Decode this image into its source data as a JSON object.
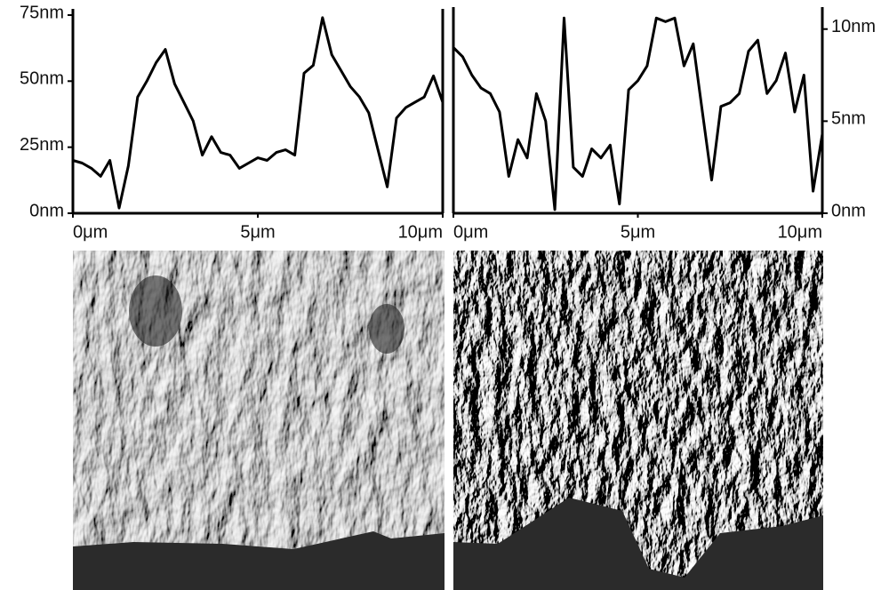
{
  "chart_data": [
    {
      "type": "line",
      "color": "#000000",
      "x": [
        0,
        0.25,
        0.5,
        0.75,
        1,
        1.25,
        1.5,
        1.75,
        2,
        2.25,
        2.5,
        2.75,
        3,
        3.25,
        3.5,
        3.75,
        4,
        4.25,
        4.5,
        4.75,
        5,
        5.25,
        5.5,
        5.75,
        6,
        6.25,
        6.5,
        6.75,
        7,
        7.25,
        7.5,
        7.75,
        8,
        8.25,
        8.5,
        8.75,
        9,
        9.25,
        9.5,
        9.75,
        10
      ],
      "values": [
        20,
        19,
        17,
        14,
        20,
        2,
        18,
        44,
        50,
        57,
        62,
        49,
        42,
        35,
        22,
        29,
        23,
        22,
        17,
        19,
        21,
        20,
        23,
        24,
        22,
        53,
        56,
        74,
        60,
        54,
        48,
        44,
        38,
        24,
        10,
        36,
        40,
        42,
        44,
        52,
        42
      ],
      "xlim": [
        0,
        10
      ],
      "xticks": [
        {
          "value": 0,
          "label": "0μm"
        },
        {
          "value": 5,
          "label": "5μm"
        },
        {
          "value": 10,
          "label": "10μm"
        }
      ],
      "ylim": [
        0,
        76
      ],
      "yticks": [
        {
          "value": 0,
          "label": "0nm"
        },
        {
          "value": 25,
          "label": "25nm"
        },
        {
          "value": 50,
          "label": "50nm"
        },
        {
          "value": 75,
          "label": "75nm"
        }
      ]
    },
    {
      "type": "line",
      "color": "#000000",
      "x": [
        0,
        0.25,
        0.5,
        0.75,
        1,
        1.25,
        1.5,
        1.75,
        2,
        2.25,
        2.5,
        2.75,
        3,
        3.25,
        3.5,
        3.75,
        4,
        4.25,
        4.5,
        4.75,
        5,
        5.25,
        5.5,
        5.75,
        6,
        6.25,
        6.5,
        6.75,
        7,
        7.25,
        7.5,
        7.75,
        8,
        8.25,
        8.5,
        8.75,
        9,
        9.25,
        9.5,
        9.75,
        10
      ],
      "values": [
        9,
        8.5,
        7.5,
        6.8,
        6.5,
        5.5,
        2,
        4,
        3,
        6.5,
        5,
        0.2,
        10.6,
        2.5,
        2,
        3.5,
        3,
        3.7,
        0.5,
        6.7,
        7.2,
        8,
        10.6,
        10.4,
        10.6,
        8,
        9.2,
        5.5,
        1.8,
        5.8,
        6,
        6.5,
        8.8,
        9.4,
        6.5,
        7.2,
        8.7,
        5.5,
        7.5,
        1.2,
        4.3
      ],
      "xlim": [
        0,
        10
      ],
      "xticks": [
        {
          "value": 0,
          "label": "0μm"
        },
        {
          "value": 5,
          "label": "5μm"
        },
        {
          "value": 10,
          "label": "10μm"
        }
      ],
      "ylim": [
        0,
        11
      ],
      "yticks": [
        {
          "value": 0,
          "label": "0nm"
        },
        {
          "value": 5,
          "label": "5nm"
        },
        {
          "value": 10,
          "label": "10nm"
        }
      ]
    }
  ]
}
